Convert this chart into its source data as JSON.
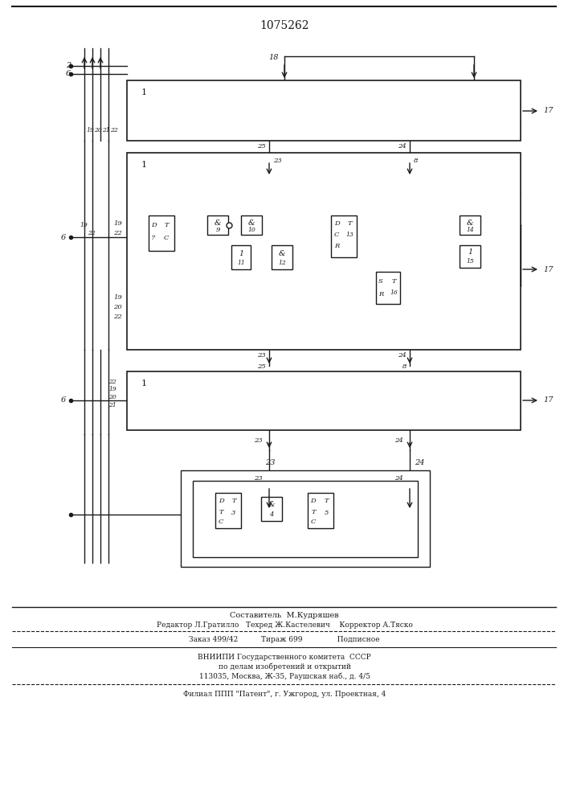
{
  "title": "1075262",
  "bg_color": "#ffffff",
  "line_color": "#1a1a1a",
  "footer_lines": [
    "Составитель  М.Кудряшев",
    "Редактор Л.Гратилло   Техред Ж.Кастелевич    Корректор А.Тяско",
    "Заказ 499/42          Тираж 699               Подписное",
    "ВНИИПИ Государственного комитета  СССР",
    "по делам изобретений и открытий",
    "113035, Москва, Ж-35, Раушская наб., д. 4/5",
    "Филиал ППП \"Патент\", г. Ужгород, ул. Проектная, 4"
  ]
}
